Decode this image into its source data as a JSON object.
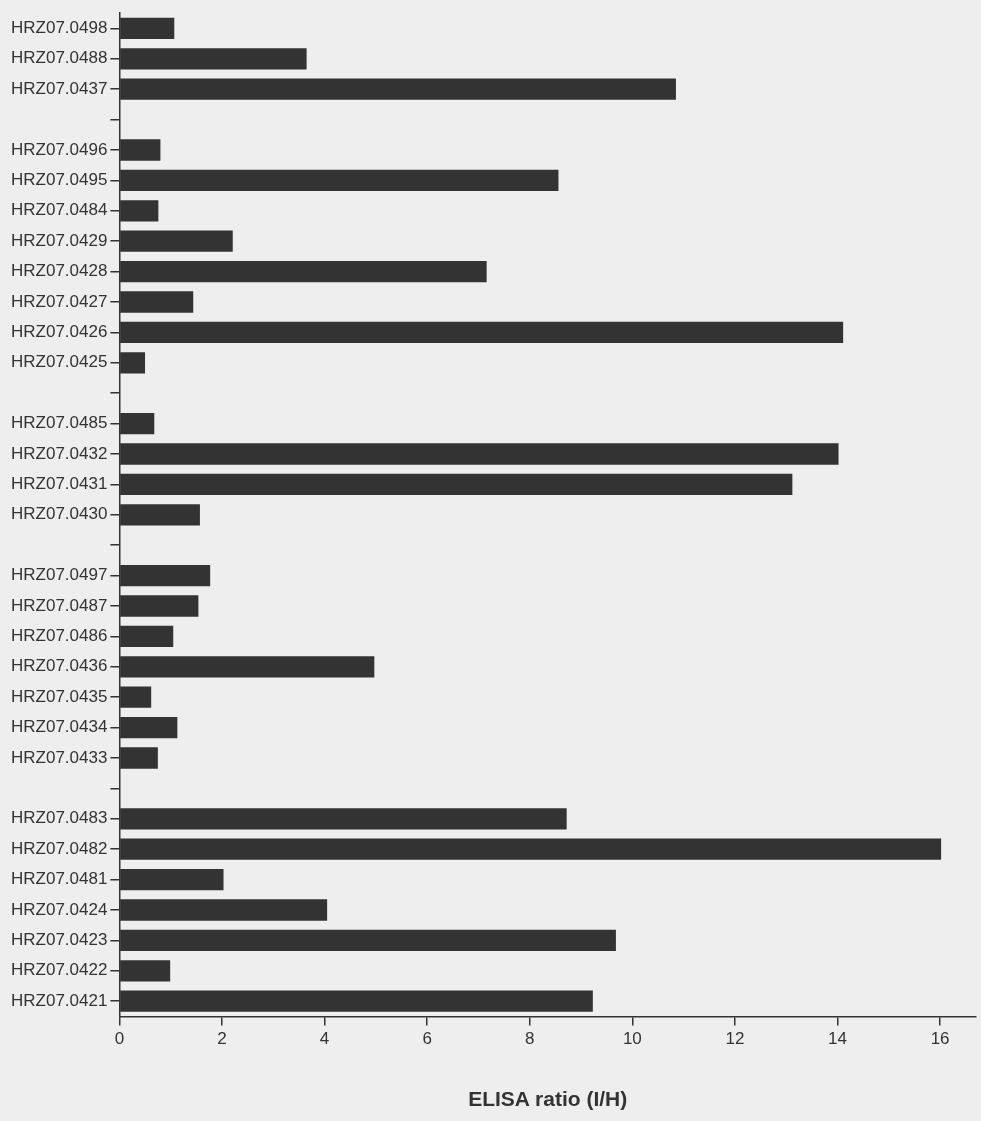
{
  "chart_data": {
    "type": "bar",
    "orientation": "horizontal",
    "xlabel": "ELISA ratio (I/H)",
    "categories": [
      "HRZ07.0498",
      "HRZ07.0488",
      "HRZ07.0437",
      null,
      "HRZ07.0496",
      "HRZ07.0495",
      "HRZ07.0484",
      "HRZ07.0429",
      "HRZ07.0428",
      "HRZ07.0427",
      "HRZ07.0426",
      "HRZ07.0425",
      null,
      "HRZ07.0485",
      "HRZ07.0432",
      "HRZ07.0431",
      "HRZ07.0430",
      null,
      "HRZ07.0497",
      "HRZ07.0487",
      "HRZ07.0486",
      "HRZ07.0436",
      "HRZ07.0435",
      "HRZ07.0434",
      "HRZ07.0433",
      null,
      "HRZ07.0483",
      "HRZ07.0482",
      "HRZ07.0481",
      "HRZ07.0424",
      "HRZ07.0423",
      "HRZ07.0422",
      "HRZ07.0421"
    ],
    "values": [
      1.07,
      3.65,
      10.85,
      null,
      0.8,
      8.56,
      0.76,
      2.21,
      7.16,
      1.44,
      14.11,
      0.5,
      null,
      0.68,
      14.02,
      13.12,
      1.57,
      null,
      1.77,
      1.54,
      1.05,
      4.97,
      0.62,
      1.13,
      0.75,
      null,
      8.72,
      16.02,
      2.03,
      4.05,
      9.68,
      0.99,
      9.23
    ],
    "color": "#333333",
    "xlim": [
      0,
      16.7
    ],
    "xticks": [
      0,
      2,
      4,
      6,
      8,
      10,
      12,
      14,
      16
    ],
    "grid": false,
    "legend": false
  }
}
